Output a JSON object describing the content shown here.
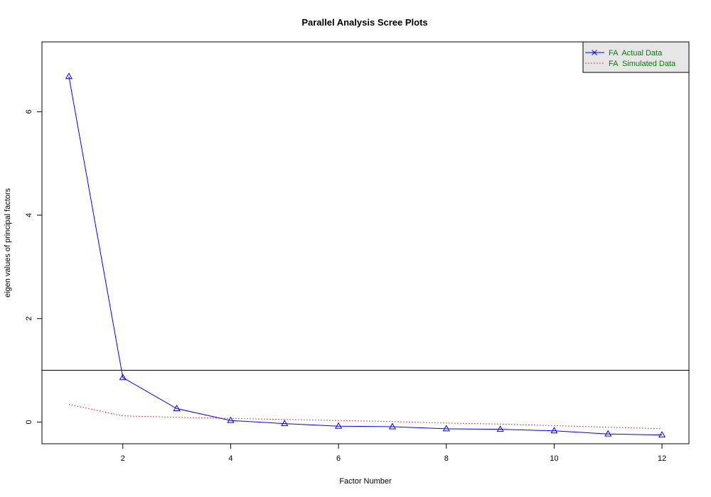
{
  "chart_data": {
    "type": "line",
    "title": "Parallel Analysis Scree Plots",
    "xlabel": "Factor Number",
    "ylabel": "eigen values of principal factors",
    "xlim": [
      0.5,
      12.5
    ],
    "ylim": [
      -0.42,
      7.35
    ],
    "xticks": [
      2,
      4,
      6,
      8,
      10,
      12
    ],
    "yticks": [
      0,
      2,
      4,
      6
    ],
    "hline": 1,
    "x": [
      1,
      2,
      3,
      4,
      5,
      6,
      7,
      8,
      9,
      10,
      11,
      12
    ],
    "series": [
      {
        "name": "FA  Actual Data",
        "color": "#0000ff",
        "style": "solid",
        "marker": "triangle",
        "values": [
          6.68,
          0.86,
          0.26,
          0.03,
          -0.03,
          -0.08,
          -0.09,
          -0.13,
          -0.14,
          -0.17,
          -0.23,
          -0.25
        ]
      },
      {
        "name": "FA  Simulated Data",
        "color": "#ff0000",
        "style": "dotted",
        "marker": "none",
        "values": [
          0.34,
          0.12,
          0.09,
          0.07,
          0.05,
          0.03,
          0.01,
          -0.02,
          -0.04,
          -0.07,
          -0.1,
          -0.13
        ]
      }
    ],
    "legend": {
      "position": "top-right",
      "background": "#e6e6e6",
      "text_color": "#008000"
    }
  }
}
